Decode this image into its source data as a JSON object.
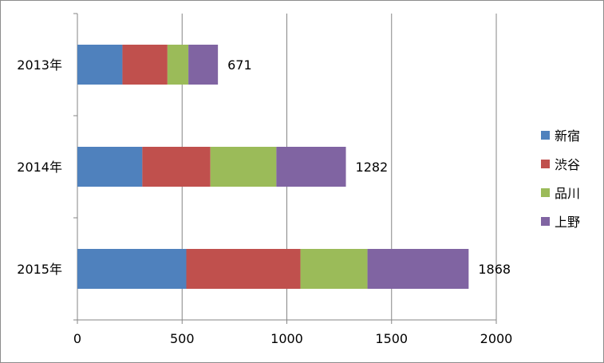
{
  "chart_data": {
    "type": "bar",
    "orientation": "horizontal",
    "stacked": true,
    "categories": [
      "2013年",
      "2014年",
      "2015年"
    ],
    "series": [
      {
        "name": "新宿",
        "color": "#4f81bd",
        "values": [
          215,
          310,
          520
        ]
      },
      {
        "name": "渋谷",
        "color": "#c0504d",
        "values": [
          215,
          325,
          545
        ]
      },
      {
        "name": "品川",
        "color": "#9bbb59",
        "values": [
          100,
          315,
          320
        ]
      },
      {
        "name": "上野",
        "color": "#8064a2",
        "values": [
          141,
          332,
          483
        ]
      }
    ],
    "totals": [
      671,
      1282,
      1868
    ],
    "xlim": [
      0,
      2000
    ],
    "xticks": [
      0,
      500,
      1000,
      1500,
      2000
    ],
    "grid": "vertical",
    "legend_position": "right"
  }
}
